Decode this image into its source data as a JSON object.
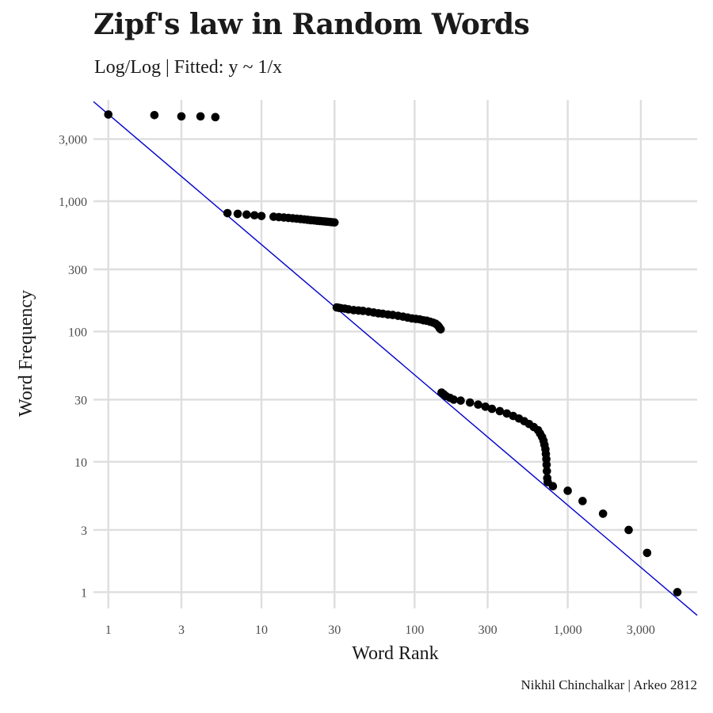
{
  "chart_data": {
    "type": "scatter",
    "title": "Zipf's law in Random Words",
    "subtitle": "Log/Log | Fitted: y ~ 1/x",
    "caption": "Nikhil Chinchalkar | Arkeo 2812",
    "xlabel": "Word Rank",
    "ylabel": "Word Frequency",
    "x_scale": "log10",
    "y_scale": "log10",
    "xlim": [
      0.8,
      7000
    ],
    "ylim": [
      0.75,
      6000
    ],
    "x_ticks": [
      1,
      3,
      10,
      30,
      100,
      300,
      1000,
      3000
    ],
    "x_tick_labels": [
      "1",
      "3",
      "10",
      "30",
      "100",
      "300",
      "1,000",
      "3,000"
    ],
    "y_ticks": [
      1,
      3,
      10,
      30,
      100,
      300,
      1000,
      3000
    ],
    "y_tick_labels": [
      "1",
      "3",
      "10",
      "30",
      "100",
      "300",
      "1,000",
      "3,000"
    ],
    "grid": true,
    "point_color": "#000000",
    "line_color": "#0000cc",
    "fit_line": {
      "label": "y ~ 1/x",
      "coefficient": 4650,
      "x_range": [
        0.8,
        7000
      ]
    },
    "series": [
      {
        "points": [
          [
            1,
            4630
          ],
          [
            2,
            4580
          ],
          [
            3,
            4480
          ],
          [
            4,
            4480
          ],
          [
            5,
            4420
          ],
          [
            6,
            810
          ],
          [
            7,
            800
          ],
          [
            8,
            790
          ],
          [
            9,
            780
          ],
          [
            10,
            770
          ],
          [
            12,
            760
          ],
          [
            13,
            755
          ],
          [
            14,
            750
          ],
          [
            15,
            745
          ],
          [
            16,
            740
          ],
          [
            17,
            735
          ],
          [
            18,
            730
          ],
          [
            19,
            725
          ],
          [
            20,
            720
          ],
          [
            21,
            715
          ],
          [
            22,
            712
          ],
          [
            23,
            708
          ],
          [
            24,
            705
          ],
          [
            25,
            702
          ],
          [
            26,
            699
          ],
          [
            27,
            696
          ],
          [
            28,
            693
          ],
          [
            29,
            690
          ],
          [
            30,
            687
          ],
          [
            31,
            153
          ],
          [
            32,
            152
          ],
          [
            33,
            151
          ],
          [
            35,
            150
          ],
          [
            37,
            148
          ],
          [
            40,
            146
          ],
          [
            43,
            145
          ],
          [
            46,
            144
          ],
          [
            50,
            142
          ],
          [
            54,
            140
          ],
          [
            58,
            138
          ],
          [
            62,
            137
          ],
          [
            67,
            135
          ],
          [
            72,
            134
          ],
          [
            78,
            132
          ],
          [
            84,
            130
          ],
          [
            90,
            128
          ],
          [
            96,
            126
          ],
          [
            102,
            125
          ],
          [
            108,
            124
          ],
          [
            114,
            122
          ],
          [
            120,
            121
          ],
          [
            126,
            119
          ],
          [
            132,
            117
          ],
          [
            137,
            115
          ],
          [
            141,
            112
          ],
          [
            144,
            109
          ],
          [
            146,
            106
          ],
          [
            148,
            104
          ],
          [
            150,
            34
          ],
          [
            155,
            33
          ],
          [
            160,
            32
          ],
          [
            170,
            31
          ],
          [
            180,
            30
          ],
          [
            200,
            29.5
          ],
          [
            230,
            28.5
          ],
          [
            260,
            27.5
          ],
          [
            290,
            26.5
          ],
          [
            320,
            25.5
          ],
          [
            360,
            24.5
          ],
          [
            400,
            23.5
          ],
          [
            440,
            22.5
          ],
          [
            480,
            21.5
          ],
          [
            520,
            20.5
          ],
          [
            560,
            19.5
          ],
          [
            600,
            18.5
          ],
          [
            640,
            17.5
          ],
          [
            660,
            16.5
          ],
          [
            680,
            15.5
          ],
          [
            695,
            14.5
          ],
          [
            705,
            13.5
          ],
          [
            715,
            12.5
          ],
          [
            720,
            11.5
          ],
          [
            725,
            10.5
          ],
          [
            728,
            9.5
          ],
          [
            731,
            8.5
          ],
          [
            735,
            7.5
          ],
          [
            740,
            7.0
          ],
          [
            800,
            6.5
          ],
          [
            1000,
            6.0
          ],
          [
            1250,
            5.0
          ],
          [
            1700,
            4.0
          ],
          [
            2500,
            3.0
          ],
          [
            3300,
            2.0
          ],
          [
            5200,
            1.0
          ]
        ]
      }
    ]
  }
}
